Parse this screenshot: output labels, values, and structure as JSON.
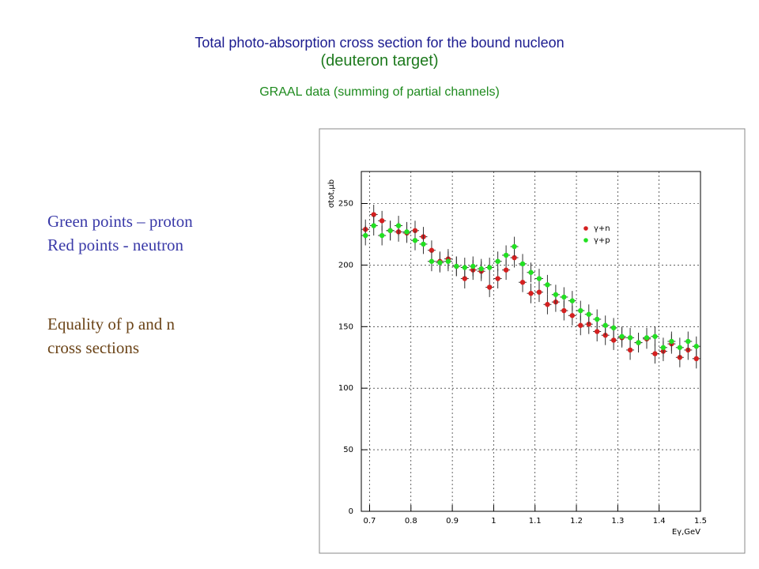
{
  "slide": {
    "title": "Total photo-absorption cross section for the bound nucleon",
    "subtitle": "(deuteron target)",
    "note": "GRAAL data  (summing of partial channels)",
    "labels": [
      "Green points  – proton",
      "Red points - neutron"
    ],
    "remark": [
      "Equality of p and n",
      "cross sections"
    ]
  },
  "chart_data": {
    "type": "scatter",
    "ylabel": "σtot,μb",
    "xlabel": "Eγ,GeV",
    "xlim": [
      0.68,
      1.5
    ],
    "ylim": [
      0,
      276
    ],
    "xticks": [
      0.7,
      0.8,
      0.9,
      1,
      1.1,
      1.2,
      1.3,
      1.4,
      1.5
    ],
    "yticks": [
      0,
      50,
      100,
      150,
      200,
      250
    ],
    "grid": true,
    "legend": "upper right",
    "x": [
      0.69,
      0.71,
      0.73,
      0.75,
      0.77,
      0.79,
      0.81,
      0.83,
      0.85,
      0.87,
      0.89,
      0.91,
      0.93,
      0.95,
      0.97,
      0.99,
      1.01,
      1.03,
      1.05,
      1.07,
      1.09,
      1.11,
      1.13,
      1.15,
      1.17,
      1.19,
      1.21,
      1.23,
      1.25,
      1.27,
      1.29,
      1.31,
      1.33,
      1.35,
      1.37,
      1.39,
      1.41,
      1.43,
      1.45,
      1.47,
      1.49
    ],
    "series": [
      {
        "name": "γ+n",
        "color": "#d42020",
        "error": 8,
        "values": [
          229,
          241,
          236,
          228,
          227,
          226,
          228,
          223,
          212,
          203,
          205,
          199,
          189,
          196,
          195,
          182,
          189,
          196,
          206,
          186,
          177,
          178,
          168,
          170,
          163,
          159,
          151,
          152,
          146,
          143,
          139,
          141,
          131,
          137,
          140,
          128,
          130,
          136,
          125,
          131,
          124
        ]
      },
      {
        "name": "γ+p",
        "color": "#22e022",
        "error": 8,
        "values": [
          224,
          232,
          224,
          228,
          232,
          227,
          220,
          217,
          203,
          202,
          203,
          199,
          198,
          199,
          197,
          198,
          203,
          208,
          215,
          201,
          194,
          189,
          184,
          176,
          174,
          171,
          163,
          160,
          156,
          151,
          149,
          142,
          141,
          137,
          141,
          142,
          133,
          138,
          133,
          138,
          134
        ]
      }
    ]
  }
}
